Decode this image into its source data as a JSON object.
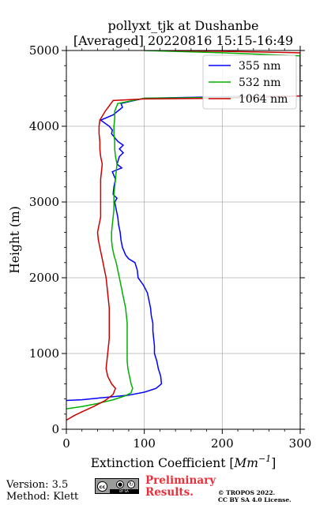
{
  "chart_data": {
    "type": "line",
    "title": "pollyxt_tjk at Dushanbe",
    "subtitle": "[Averaged] 20220816 15:15-16:49",
    "xlabel": "Extinction Coefficient [Mm^-1]",
    "xlabel_main": "Extinction Coefficient [",
    "xlabel_unit": "Mm",
    "xlabel_exp": "−1",
    "xlabel_close": "]",
    "ylabel": "Height (m)",
    "xlim": [
      0,
      300
    ],
    "ylim": [
      0,
      5000
    ],
    "x_ticks": [
      "0",
      "100",
      "200",
      "300"
    ],
    "y_ticks": [
      "0",
      "1000",
      "2000",
      "3000",
      "4000",
      "5000"
    ],
    "grid": true,
    "legend_position": "top-right",
    "series": [
      {
        "name": "355 nm",
        "color": "#0000ff",
        "points": [
          [
            0,
            380
          ],
          [
            20,
            390
          ],
          [
            40,
            410
          ],
          [
            60,
            430
          ],
          [
            80,
            450
          ],
          [
            100,
            490
          ],
          [
            115,
            540
          ],
          [
            122,
            600
          ],
          [
            121,
            700
          ],
          [
            118,
            800
          ],
          [
            116,
            900
          ],
          [
            113,
            1000
          ],
          [
            113,
            1100
          ],
          [
            112,
            1200
          ],
          [
            111,
            1300
          ],
          [
            111,
            1400
          ],
          [
            109,
            1500
          ],
          [
            108,
            1600
          ],
          [
            106,
            1700
          ],
          [
            104,
            1800
          ],
          [
            99,
            1900
          ],
          [
            92,
            2000
          ],
          [
            91,
            2100
          ],
          [
            88,
            2200
          ],
          [
            80,
            2250
          ],
          [
            76,
            2300
          ],
          [
            72,
            2400
          ],
          [
            70,
            2500
          ],
          [
            69,
            2600
          ],
          [
            67,
            2700
          ],
          [
            66,
            2800
          ],
          [
            64,
            2900
          ],
          [
            62,
            3000
          ],
          [
            65,
            3050
          ],
          [
            60,
            3100
          ],
          [
            61,
            3200
          ],
          [
            63,
            3300
          ],
          [
            59,
            3400
          ],
          [
            71,
            3450
          ],
          [
            65,
            3500
          ],
          [
            68,
            3600
          ],
          [
            73,
            3650
          ],
          [
            68,
            3700
          ],
          [
            73,
            3750
          ],
          [
            66,
            3800
          ],
          [
            58,
            3900
          ],
          [
            59,
            3950
          ],
          [
            55,
            4000
          ],
          [
            44,
            4080
          ],
          [
            60,
            4150
          ],
          [
            72,
            4250
          ],
          [
            70,
            4300
          ],
          [
            100,
            4370
          ],
          [
            200,
            4390
          ],
          [
            300,
            4400
          ]
        ]
      },
      {
        "name": "532 nm",
        "color": "#00b000",
        "points": [
          [
            0,
            270
          ],
          [
            20,
            300
          ],
          [
            40,
            340
          ],
          [
            60,
            390
          ],
          [
            75,
            440
          ],
          [
            83,
            480
          ],
          [
            85,
            540
          ],
          [
            83,
            600
          ],
          [
            81,
            700
          ],
          [
            79,
            800
          ],
          [
            78,
            900
          ],
          [
            78,
            1000
          ],
          [
            78,
            1100
          ],
          [
            78,
            1200
          ],
          [
            78,
            1300
          ],
          [
            78,
            1400
          ],
          [
            77,
            1500
          ],
          [
            76,
            1600
          ],
          [
            74,
            1700
          ],
          [
            72,
            1800
          ],
          [
            70,
            1900
          ],
          [
            68,
            2000
          ],
          [
            66,
            2100
          ],
          [
            64,
            2200
          ],
          [
            61,
            2300
          ],
          [
            59,
            2400
          ],
          [
            58,
            2500
          ],
          [
            58,
            2600
          ],
          [
            59,
            2700
          ],
          [
            60,
            2800
          ],
          [
            61,
            2900
          ],
          [
            61,
            3000
          ],
          [
            61,
            3100
          ],
          [
            62,
            3200
          ],
          [
            63,
            3300
          ],
          [
            64,
            3400
          ],
          [
            65,
            3500
          ],
          [
            63,
            3600
          ],
          [
            62,
            3700
          ],
          [
            62,
            3800
          ],
          [
            61,
            3900
          ],
          [
            61,
            4000
          ],
          [
            62,
            4100
          ],
          [
            62,
            4200
          ],
          [
            66,
            4300
          ],
          [
            100,
            4370
          ],
          [
            200,
            4380
          ],
          [
            300,
            4400
          ],
          [
            300,
            4930
          ],
          [
            200,
            4970
          ],
          [
            100,
            5000
          ]
        ]
      },
      {
        "name": "1064 nm",
        "color": "#cc0000",
        "points": [
          [
            0,
            120
          ],
          [
            10,
            180
          ],
          [
            20,
            230
          ],
          [
            35,
            300
          ],
          [
            50,
            380
          ],
          [
            60,
            460
          ],
          [
            63,
            540
          ],
          [
            58,
            600
          ],
          [
            53,
            700
          ],
          [
            51,
            800
          ],
          [
            52,
            900
          ],
          [
            53,
            1000
          ],
          [
            54,
            1100
          ],
          [
            55,
            1200
          ],
          [
            55,
            1300
          ],
          [
            55,
            1400
          ],
          [
            55,
            1500
          ],
          [
            55,
            1600
          ],
          [
            54,
            1700
          ],
          [
            53,
            1800
          ],
          [
            52,
            1900
          ],
          [
            51,
            2000
          ],
          [
            49,
            2100
          ],
          [
            47,
            2200
          ],
          [
            45,
            2300
          ],
          [
            43,
            2400
          ],
          [
            41,
            2500
          ],
          [
            40,
            2600
          ],
          [
            42,
            2700
          ],
          [
            44,
            2800
          ],
          [
            44,
            2900
          ],
          [
            44,
            3000
          ],
          [
            44,
            3100
          ],
          [
            44,
            3200
          ],
          [
            44,
            3300
          ],
          [
            45,
            3400
          ],
          [
            46,
            3500
          ],
          [
            44,
            3600
          ],
          [
            43,
            3700
          ],
          [
            43,
            3800
          ],
          [
            42,
            3900
          ],
          [
            42,
            4000
          ],
          [
            43,
            4080
          ],
          [
            50,
            4200
          ],
          [
            60,
            4340
          ],
          [
            100,
            4360
          ],
          [
            200,
            4370
          ],
          [
            300,
            4400
          ],
          [
            300,
            4970
          ],
          [
            200,
            4990
          ],
          [
            130,
            5000
          ]
        ]
      }
    ]
  },
  "footer": {
    "version": "Version: 3.5",
    "method": "Method: Klett",
    "preliminary_line1": "Preliminary",
    "preliminary_line2": "Results.",
    "copyright_line1": "© TROPOS 2022.",
    "copyright_line2": "CC BY SA 4.0 License."
  }
}
